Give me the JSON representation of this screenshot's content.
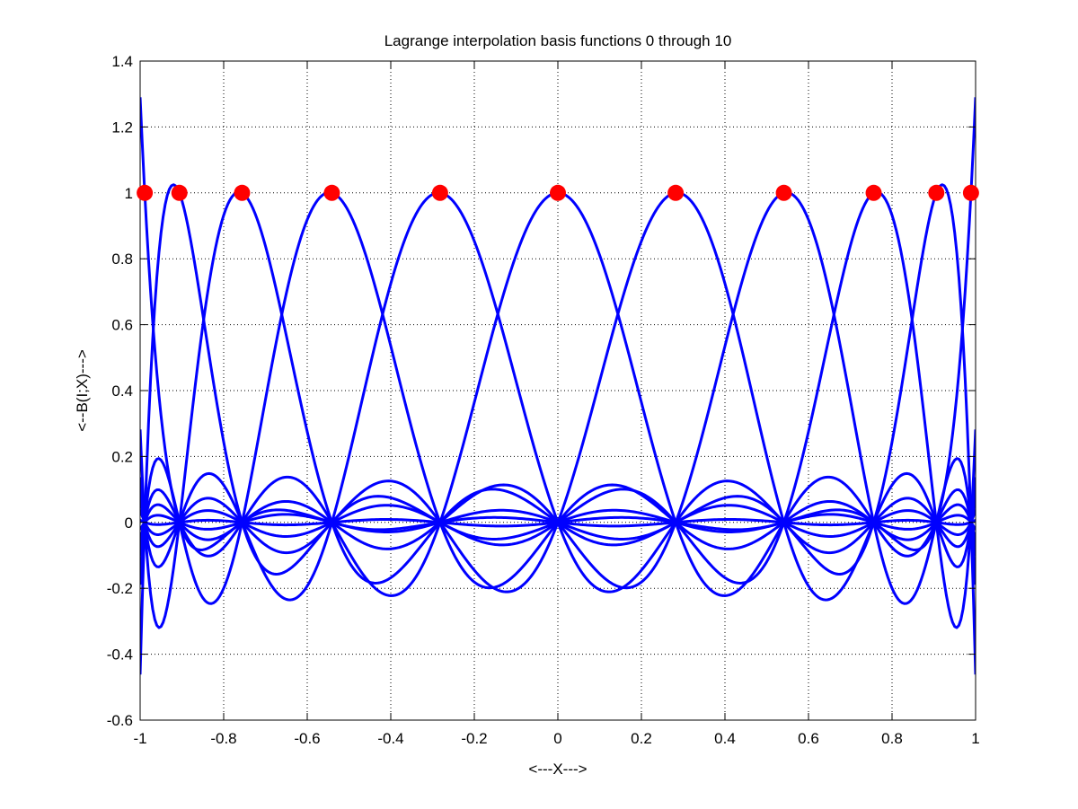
{
  "chart_data": {
    "type": "line",
    "title": "Lagrange interpolation basis functions 0 through 10",
    "xlabel": "<---X--->",
    "ylabel": "<--B(I;X)--->",
    "xlim": [
      -1,
      1
    ],
    "ylim": [
      -0.6,
      1.4
    ],
    "x_ticks": [
      -1,
      -0.8,
      -0.6,
      -0.4,
      -0.2,
      0,
      0.2,
      0.4,
      0.6,
      0.8,
      1
    ],
    "x_tick_labels": [
      "-1",
      "-0.8",
      "-0.6",
      "-0.4",
      "-0.2",
      "0",
      "0.2",
      "0.4",
      "0.6",
      "0.8",
      "1"
    ],
    "y_ticks": [
      -0.6,
      -0.4,
      -0.2,
      0,
      0.2,
      0.4,
      0.6,
      0.8,
      1,
      1.2,
      1.4
    ],
    "y_tick_labels": [
      "-0.6",
      "-0.4",
      "-0.2",
      "0",
      "0.2",
      "0.4",
      "0.6",
      "0.8",
      "1",
      "1.2",
      "1.4"
    ],
    "grid": true,
    "nodes_x": [
      -0.989,
      -0.906,
      -0.756,
      -0.541,
      -0.282,
      0,
      0.282,
      0.541,
      0.756,
      0.906,
      0.989
    ],
    "nodes_y": [
      1,
      1,
      1,
      1,
      1,
      1,
      1,
      1,
      1,
      1,
      1
    ],
    "series_count": 11,
    "curve_color": "#0000ff",
    "marker_color": "#ff0000",
    "axis_color": "#000000",
    "grid_color": "#000000"
  }
}
